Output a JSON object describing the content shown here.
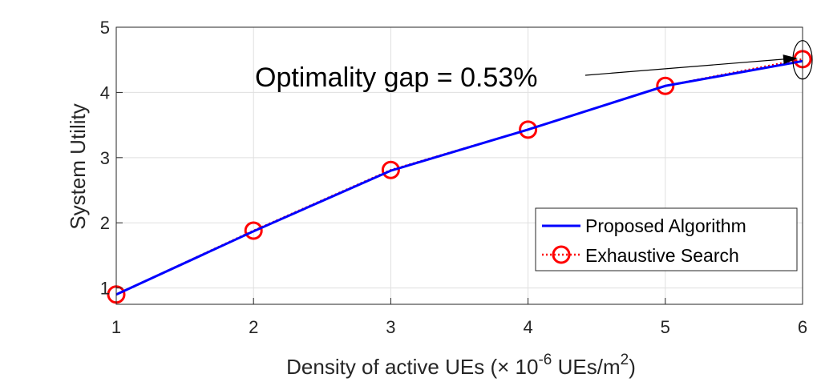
{
  "chart_data": {
    "type": "line",
    "x": [
      1,
      2,
      3,
      4,
      5,
      6
    ],
    "series": [
      {
        "name": "Proposed Algorithm",
        "values": [
          0.9,
          1.87,
          2.8,
          3.43,
          4.1,
          4.48
        ],
        "color": "#0000ff",
        "style": "solid"
      },
      {
        "name": "Exhaustive Search",
        "values": [
          0.9,
          1.88,
          2.81,
          3.43,
          4.1,
          4.51
        ],
        "color": "#ff0000",
        "style": "dotted",
        "marker": "circle"
      }
    ],
    "xlabel_prefix": "Density of active UEs (",
    "xlabel_times": "×",
    "xlabel_base": " 10",
    "xlabel_exp": "-6",
    "xlabel_unit": " UEs/m",
    "xlabel_unit_exp": "2",
    "xlabel_suffix": ")",
    "ylabel": "System Utility",
    "xlim": [
      1,
      6
    ],
    "ylim": [
      0.75,
      5
    ],
    "xticks": [
      1,
      2,
      3,
      4,
      5,
      6
    ],
    "yticks": [
      1,
      2,
      3,
      4,
      5
    ],
    "grid": true,
    "legend_position": "lower-right",
    "annotation": {
      "text": "Optimality gap = 0.53%",
      "target_x": 6,
      "target_y": 4.5
    }
  }
}
